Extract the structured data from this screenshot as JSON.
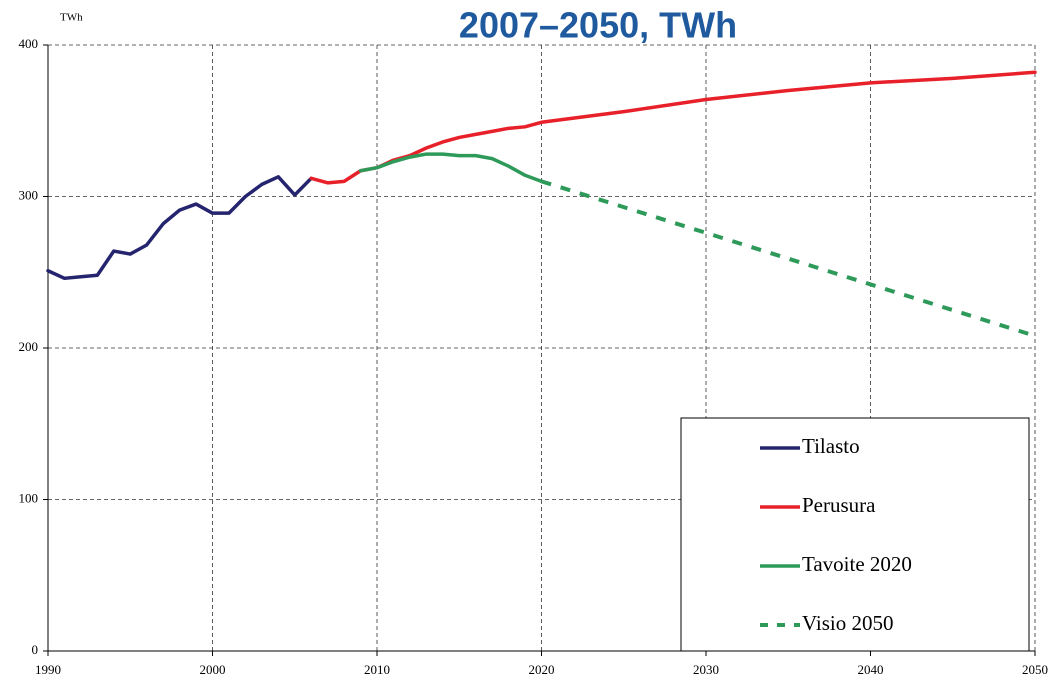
{
  "chart_data": {
    "type": "line",
    "title": "2007–2050, TWh",
    "y_label": "TWh",
    "x": [
      1990,
      1991,
      1992,
      1993,
      1994,
      1995,
      1996,
      1997,
      1998,
      1999,
      2000,
      2001,
      2002,
      2003,
      2004,
      2005,
      2006,
      2007,
      2008,
      2009,
      2010,
      2011,
      2012,
      2013,
      2014,
      2015,
      2016,
      2017,
      2018,
      2019,
      2020,
      2025,
      2030,
      2035,
      2040,
      2045,
      2050
    ],
    "series": [
      {
        "name": "Tilasto",
        "color": "#25256f",
        "dash": false,
        "values": [
          251,
          246,
          247,
          248,
          264,
          262,
          268,
          282,
          291,
          295,
          289,
          289,
          300,
          308,
          313,
          301,
          312,
          null,
          null,
          null,
          null,
          null,
          null,
          null,
          null,
          null,
          null,
          null,
          null,
          null,
          null,
          null,
          null,
          null,
          null,
          null,
          null
        ]
      },
      {
        "name": "Perusura",
        "color": "#e8202a",
        "dash": false,
        "values": [
          null,
          null,
          null,
          null,
          null,
          null,
          null,
          null,
          null,
          null,
          null,
          null,
          null,
          null,
          null,
          null,
          312,
          309,
          310,
          317,
          319,
          324,
          327,
          332,
          336,
          339,
          341,
          343,
          345,
          346,
          349,
          356,
          364,
          370,
          375,
          378,
          382
        ]
      },
      {
        "name": "Tavoite 2020",
        "color": "#2e9a5a",
        "dash": false,
        "values": [
          null,
          null,
          null,
          null,
          null,
          null,
          null,
          null,
          null,
          null,
          null,
          null,
          null,
          null,
          null,
          null,
          null,
          null,
          null,
          317,
          319,
          323,
          326,
          328,
          328,
          327,
          327,
          325,
          320,
          314,
          310,
          null,
          null,
          null,
          null,
          null,
          null
        ]
      },
      {
        "name": "Visio 2050",
        "color": "#2e9a5a",
        "dash": true,
        "values": [
          null,
          null,
          null,
          null,
          null,
          null,
          null,
          null,
          null,
          null,
          null,
          null,
          null,
          null,
          null,
          null,
          null,
          null,
          null,
          null,
          null,
          null,
          null,
          null,
          null,
          null,
          null,
          null,
          null,
          null,
          310,
          293,
          276,
          259,
          242,
          225,
          208
        ]
      }
    ],
    "xlim": [
      1990,
      2050
    ],
    "xticks": [
      1990,
      2000,
      2010,
      2020,
      2030,
      2040,
      2050
    ],
    "ylim": [
      0,
      400
    ],
    "yticks": [
      0,
      100,
      200,
      300,
      400
    ],
    "grid": true,
    "legend": "lower right"
  }
}
